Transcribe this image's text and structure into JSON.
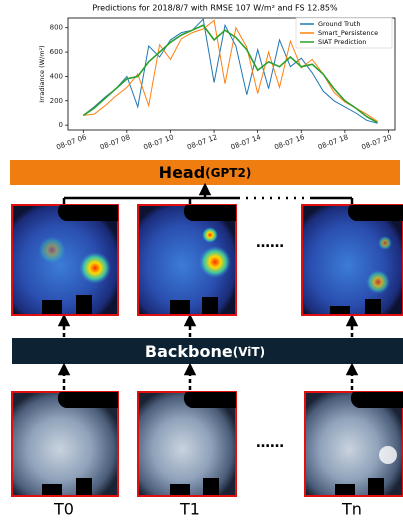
{
  "chart_data": {
    "type": "line",
    "title": "Predictions for 2018/8/7 with RMSE 107 W/m² and FS 12.85%",
    "y_label": "Irradiance (W/m²)",
    "x": [
      6,
      6.5,
      7,
      7.5,
      8,
      8.5,
      9,
      9.5,
      10,
      10.5,
      11,
      11.5,
      12,
      12.5,
      13,
      13.5,
      14,
      14.5,
      15,
      15.5,
      16,
      16.5,
      17,
      17.5,
      18,
      18.5,
      19,
      19.5
    ],
    "series": [
      {
        "name": "Ground Truth",
        "color": "#1f77b4",
        "values": [
          80,
          150,
          230,
          300,
          400,
          150,
          650,
          560,
          700,
          760,
          780,
          870,
          350,
          820,
          650,
          250,
          620,
          300,
          700,
          480,
          550,
          430,
          280,
          200,
          150,
          100,
          40,
          15
        ]
      },
      {
        "name": "Smart_Persistence",
        "color": "#ff7f0e",
        "values": [
          80,
          90,
          160,
          240,
          310,
          420,
          160,
          660,
          540,
          710,
          760,
          790,
          860,
          340,
          800,
          640,
          260,
          600,
          310,
          690,
          470,
          540,
          420,
          270,
          190,
          140,
          90,
          30
        ]
      },
      {
        "name": "SIAT Prediction",
        "color": "#2ca02c",
        "values": [
          80,
          140,
          220,
          300,
          380,
          400,
          520,
          600,
          680,
          740,
          780,
          820,
          700,
          780,
          720,
          620,
          450,
          520,
          480,
          560,
          480,
          500,
          420,
          300,
          200,
          140,
          70,
          20
        ]
      }
    ],
    "xlim": [
      5.3,
      20.3
    ],
    "ylim": [
      -40,
      880
    ],
    "xticks": [
      {
        "value": 6,
        "label": "08-07 06"
      },
      {
        "value": 8,
        "label": "08-07 08"
      },
      {
        "value": 10,
        "label": "08-07 10"
      },
      {
        "value": 12,
        "label": "08-07 12"
      },
      {
        "value": 14,
        "label": "08-07 14"
      },
      {
        "value": 16,
        "label": "08-07 16"
      },
      {
        "value": 18,
        "label": "08-07 18"
      },
      {
        "value": 20,
        "label": "08-07 20"
      }
    ],
    "yticks": [
      0,
      200,
      400,
      600,
      800
    ],
    "legend": "upper right"
  },
  "diagram": {
    "head": "Head",
    "head_model": "(GPT2)",
    "backbone": "Backbone",
    "backbone_model": "(ViT)",
    "ellipsis": "……",
    "frames": [
      "T0",
      "T1",
      "Tn"
    ]
  }
}
